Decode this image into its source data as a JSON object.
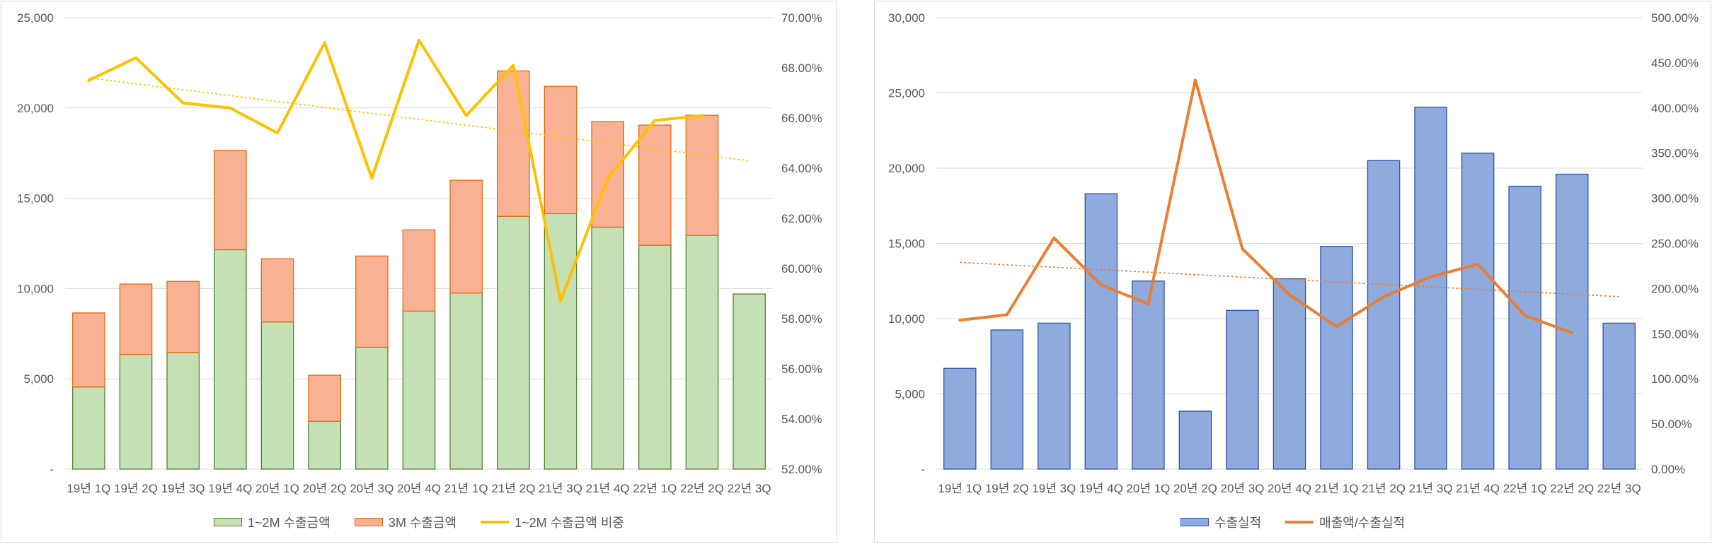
{
  "chart_data": [
    {
      "type": "bar",
      "stacked": true,
      "categories": [
        "19년 1Q",
        "19년 2Q",
        "19년 3Q",
        "19년 4Q",
        "20년 1Q",
        "20년 2Q",
        "20년 3Q",
        "20년 4Q",
        "21년 1Q",
        "21년 2Q",
        "21년 3Q",
        "21년 4Q",
        "22년 1Q",
        "22년 2Q",
        "22년 3Q"
      ],
      "series": [
        {
          "name": "1~2M 수출금액",
          "type": "bar",
          "axis": "left",
          "color": "#c5e0b4",
          "edge": "#548235",
          "values": [
            4550,
            6350,
            6450,
            12150,
            8150,
            2650,
            6750,
            8750,
            9750,
            14000,
            14150,
            13400,
            12400,
            12950,
            9700
          ]
        },
        {
          "name": "3M 수출금액",
          "type": "bar",
          "axis": "left",
          "color": "#f8b193",
          "edge": "#e46c0a",
          "values": [
            4100,
            3900,
            3950,
            5500,
            3500,
            2550,
            5050,
            4500,
            6250,
            8050,
            7050,
            5850,
            6650,
            6650,
            null
          ]
        },
        {
          "name": "1~2M 수출금액 비중",
          "type": "line",
          "axis": "right",
          "color": "#ffc000",
          "values": [
            67.5,
            68.4,
            66.6,
            66.4,
            65.4,
            69.0,
            63.6,
            69.1,
            66.1,
            68.1,
            58.7,
            63.6,
            65.9,
            66.1,
            null
          ]
        }
      ],
      "trendline": {
        "series": "1~2M 수출금액 비중",
        "from": 67.6,
        "to": 64.3,
        "color": "#ffc000"
      },
      "y_left": {
        "min": 0,
        "max": 25000,
        "ticks": [
          "-",
          "5,000",
          "10,000",
          "15,000",
          "20,000",
          "25,000"
        ]
      },
      "y_right": {
        "min": 52,
        "max": 70,
        "ticks": [
          "52.00%",
          "54.00%",
          "56.00%",
          "58.00%",
          "60.00%",
          "62.00%",
          "64.00%",
          "66.00%",
          "68.00%",
          "70.00%"
        ]
      },
      "grid": true,
      "legend": "bottom"
    },
    {
      "type": "bar",
      "categories": [
        "19년 1Q",
        "19년 2Q",
        "19년 3Q",
        "19년 4Q",
        "20년 1Q",
        "20년 2Q",
        "20년 3Q",
        "20년 4Q",
        "21년 1Q",
        "21년 2Q",
        "21년 3Q",
        "21년 4Q",
        "22년 1Q",
        "22년 2Q",
        "22년 3Q"
      ],
      "series": [
        {
          "name": "수출실적",
          "type": "bar",
          "axis": "left",
          "color": "#8faadc",
          "edge": "#2f55a4",
          "values": [
            6700,
            9250,
            9700,
            18300,
            12500,
            3850,
            10550,
            12650,
            14800,
            20500,
            24050,
            21000,
            18800,
            19600,
            9700
          ]
        },
        {
          "name": "매출액/수출실적",
          "type": "line",
          "axis": "right",
          "color": "#ed7d31",
          "values": [
            165,
            171,
            256,
            204,
            183,
            431,
            244,
            193,
            158,
            191,
            213,
            227,
            170,
            151,
            null
          ]
        }
      ],
      "trendline": {
        "series": "매출액/수출실적",
        "from": 229,
        "to": 191,
        "color": "#ed7d31"
      },
      "y_left": {
        "min": 0,
        "max": 30000,
        "ticks": [
          "-",
          "5,000",
          "10,000",
          "15,000",
          "20,000",
          "25,000",
          "30,000"
        ]
      },
      "y_right": {
        "min": 0,
        "max": 500,
        "ticks": [
          "0.00%",
          "50.00%",
          "100.00%",
          "150.00%",
          "200.00%",
          "250.00%",
          "300.00%",
          "350.00%",
          "400.00%",
          "450.00%",
          "500.00%"
        ]
      },
      "grid": true,
      "legend": "bottom"
    }
  ]
}
